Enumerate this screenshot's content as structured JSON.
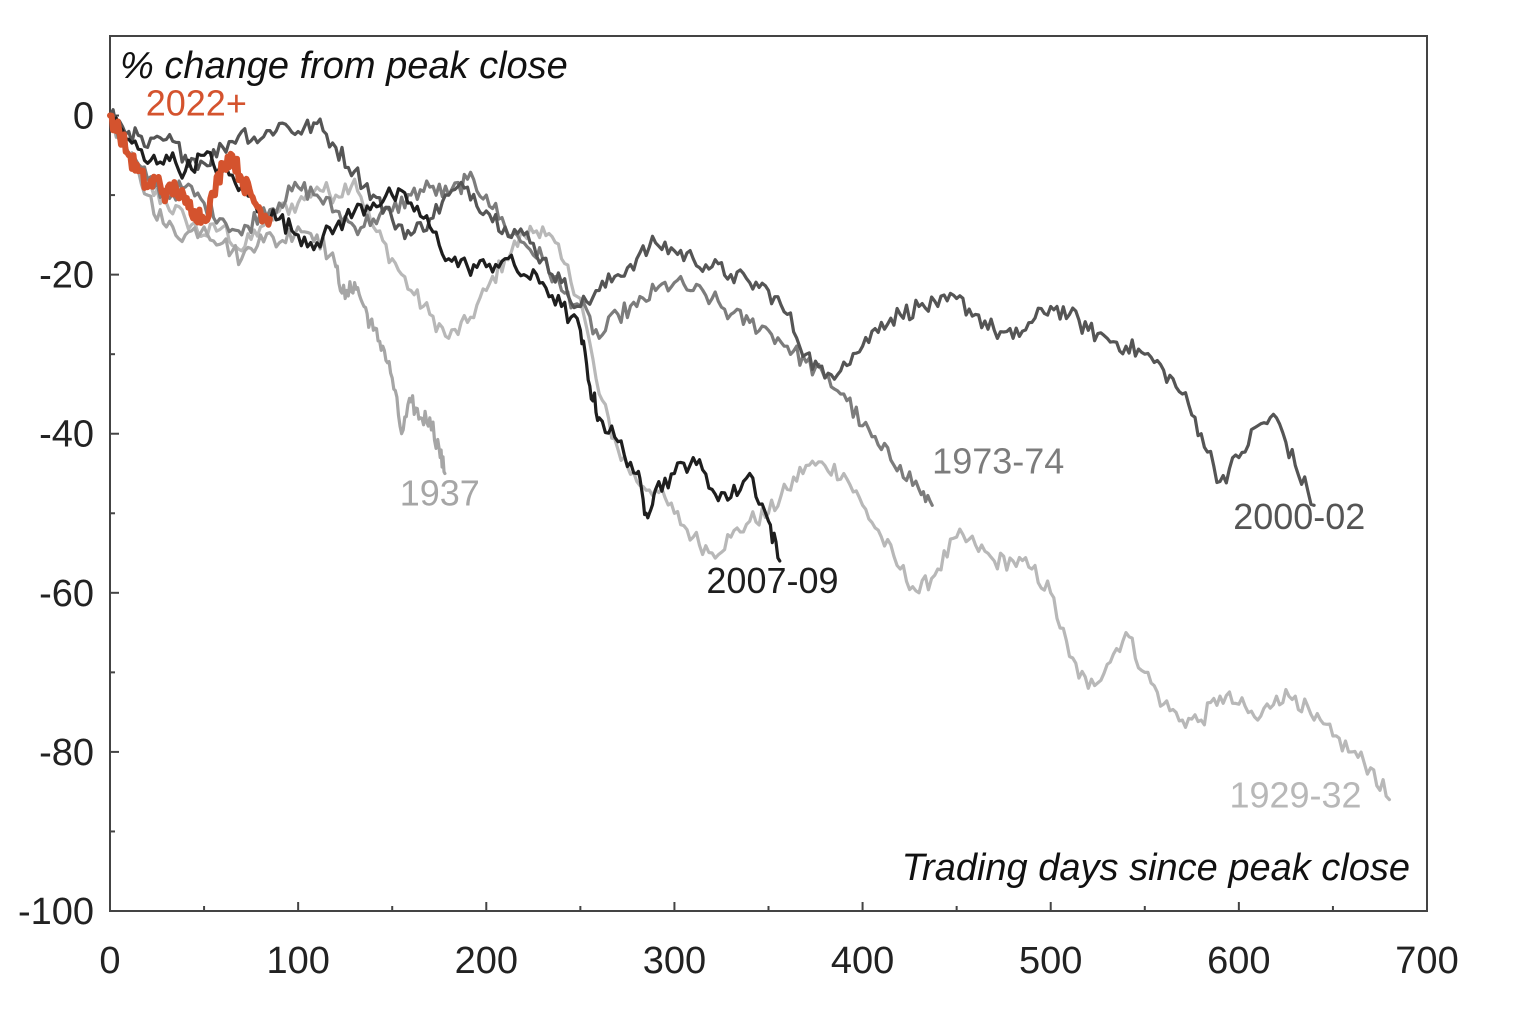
{
  "chart_data": {
    "type": "line",
    "title": "",
    "ylabel": "% change from peak close",
    "xlabel": "Trading days since peak close",
    "xlim": [
      0,
      700
    ],
    "ylim": [
      -100,
      10
    ],
    "x_ticks": [
      0,
      100,
      200,
      300,
      400,
      500,
      600,
      700
    ],
    "x_tick_labels": [
      "0",
      "100",
      "200",
      "300",
      "400",
      "500",
      "600",
      "700"
    ],
    "y_ticks": [
      0,
      -20,
      -40,
      -60,
      -80,
      -100
    ],
    "y_tick_labels": [
      "0",
      "-20",
      "-40",
      "-60",
      "-80",
      "-100"
    ],
    "grid": false,
    "legend": "none (series labelled directly on the lines)",
    "series": [
      {
        "name": "1929-32",
        "color": "#b8b8b8",
        "points": [
          [
            0,
            0
          ],
          [
            10,
            -5
          ],
          [
            20,
            -9
          ],
          [
            30,
            -11
          ],
          [
            40,
            -13
          ],
          [
            50,
            -15
          ],
          [
            60,
            -14
          ],
          [
            70,
            -17
          ],
          [
            80,
            -14
          ],
          [
            90,
            -12
          ],
          [
            100,
            -11
          ],
          [
            110,
            -9
          ],
          [
            120,
            -10
          ],
          [
            130,
            -8
          ],
          [
            140,
            -14
          ],
          [
            150,
            -18
          ],
          [
            160,
            -22
          ],
          [
            170,
            -25
          ],
          [
            180,
            -28
          ],
          [
            190,
            -26
          ],
          [
            200,
            -22
          ],
          [
            210,
            -18
          ],
          [
            220,
            -15
          ],
          [
            230,
            -14
          ],
          [
            240,
            -18
          ],
          [
            250,
            -23
          ],
          [
            260,
            -35
          ],
          [
            270,
            -42
          ],
          [
            280,
            -46
          ],
          [
            290,
            -47
          ],
          [
            300,
            -50
          ],
          [
            310,
            -53
          ],
          [
            320,
            -55
          ],
          [
            330,
            -53
          ],
          [
            340,
            -51
          ],
          [
            350,
            -50
          ],
          [
            360,
            -47
          ],
          [
            370,
            -44
          ],
          [
            380,
            -44
          ],
          [
            390,
            -45
          ],
          [
            400,
            -49
          ],
          [
            410,
            -53
          ],
          [
            420,
            -57
          ],
          [
            430,
            -60
          ],
          [
            440,
            -57
          ],
          [
            450,
            -53
          ],
          [
            460,
            -54
          ],
          [
            470,
            -56
          ],
          [
            480,
            -56
          ],
          [
            490,
            -57
          ],
          [
            500,
            -60
          ],
          [
            510,
            -68
          ],
          [
            520,
            -72
          ],
          [
            530,
            -69
          ],
          [
            540,
            -65
          ],
          [
            550,
            -70
          ],
          [
            560,
            -74
          ],
          [
            570,
            -76
          ],
          [
            580,
            -76
          ],
          [
            590,
            -73
          ],
          [
            600,
            -74
          ],
          [
            610,
            -76
          ],
          [
            620,
            -73
          ],
          [
            630,
            -73
          ],
          [
            640,
            -76
          ],
          [
            650,
            -78
          ],
          [
            660,
            -80
          ],
          [
            670,
            -82
          ],
          [
            680,
            -86
          ]
        ]
      },
      {
        "name": "1937",
        "color": "#a6a6a6",
        "points": [
          [
            0,
            0
          ],
          [
            10,
            -5
          ],
          [
            20,
            -10
          ],
          [
            30,
            -14
          ],
          [
            40,
            -15
          ],
          [
            50,
            -14
          ],
          [
            60,
            -16
          ],
          [
            70,
            -18
          ],
          [
            80,
            -15
          ],
          [
            90,
            -16
          ],
          [
            100,
            -14
          ],
          [
            110,
            -15
          ],
          [
            120,
            -19
          ],
          [
            125,
            -23
          ],
          [
            130,
            -21
          ],
          [
            135,
            -24
          ],
          [
            140,
            -27
          ],
          [
            145,
            -29
          ],
          [
            150,
            -33
          ],
          [
            155,
            -40
          ],
          [
            160,
            -36
          ],
          [
            165,
            -38
          ],
          [
            170,
            -38
          ],
          [
            175,
            -42
          ],
          [
            178,
            -45
          ]
        ]
      },
      {
        "name": "1973-74",
        "color": "#7c7c7c",
        "points": [
          [
            0,
            0
          ],
          [
            10,
            -5
          ],
          [
            20,
            -8
          ],
          [
            30,
            -10
          ],
          [
            40,
            -9
          ],
          [
            50,
            -11
          ],
          [
            60,
            -13
          ],
          [
            70,
            -15
          ],
          [
            80,
            -12
          ],
          [
            90,
            -11
          ],
          [
            100,
            -9
          ],
          [
            110,
            -10
          ],
          [
            120,
            -12
          ],
          [
            130,
            -14
          ],
          [
            140,
            -13
          ],
          [
            150,
            -12
          ],
          [
            160,
            -10
          ],
          [
            170,
            -9
          ],
          [
            180,
            -10
          ],
          [
            190,
            -8
          ],
          [
            200,
            -10
          ],
          [
            210,
            -14
          ],
          [
            220,
            -16
          ],
          [
            230,
            -18
          ],
          [
            240,
            -22
          ],
          [
            250,
            -24
          ],
          [
            260,
            -28
          ],
          [
            270,
            -25
          ],
          [
            280,
            -24
          ],
          [
            290,
            -22
          ],
          [
            300,
            -21
          ],
          [
            310,
            -22
          ],
          [
            320,
            -23
          ],
          [
            330,
            -25
          ],
          [
            340,
            -26
          ],
          [
            350,
            -27
          ],
          [
            360,
            -29
          ],
          [
            370,
            -31
          ],
          [
            380,
            -33
          ],
          [
            390,
            -35
          ],
          [
            400,
            -39
          ],
          [
            410,
            -42
          ],
          [
            420,
            -44
          ],
          [
            430,
            -47
          ],
          [
            437,
            -49
          ]
        ]
      },
      {
        "name": "2000-02",
        "color": "#555555",
        "points": [
          [
            0,
            0
          ],
          [
            10,
            -2
          ],
          [
            20,
            -4
          ],
          [
            30,
            -3
          ],
          [
            40,
            -5
          ],
          [
            50,
            -6
          ],
          [
            60,
            -4
          ],
          [
            70,
            -2
          ],
          [
            80,
            -3
          ],
          [
            90,
            -1
          ],
          [
            100,
            -2
          ],
          [
            110,
            -1
          ],
          [
            120,
            -4
          ],
          [
            130,
            -7
          ],
          [
            140,
            -10
          ],
          [
            150,
            -13
          ],
          [
            160,
            -15
          ],
          [
            170,
            -13
          ],
          [
            180,
            -10
          ],
          [
            190,
            -9
          ],
          [
            200,
            -12
          ],
          [
            210,
            -14
          ],
          [
            220,
            -15
          ],
          [
            230,
            -18
          ],
          [
            240,
            -21
          ],
          [
            250,
            -24
          ],
          [
            260,
            -22
          ],
          [
            270,
            -20
          ],
          [
            280,
            -18
          ],
          [
            290,
            -16
          ],
          [
            300,
            -17
          ],
          [
            310,
            -18
          ],
          [
            320,
            -19
          ],
          [
            330,
            -20
          ],
          [
            340,
            -21
          ],
          [
            350,
            -22
          ],
          [
            360,
            -25
          ],
          [
            370,
            -30
          ],
          [
            380,
            -33
          ],
          [
            390,
            -31
          ],
          [
            400,
            -29
          ],
          [
            410,
            -26
          ],
          [
            420,
            -25
          ],
          [
            430,
            -24
          ],
          [
            440,
            -24
          ],
          [
            450,
            -23
          ],
          [
            460,
            -25
          ],
          [
            470,
            -27
          ],
          [
            480,
            -28
          ],
          [
            490,
            -26
          ],
          [
            500,
            -24
          ],
          [
            510,
            -25
          ],
          [
            520,
            -27
          ],
          [
            530,
            -28
          ],
          [
            540,
            -29
          ],
          [
            550,
            -30
          ],
          [
            560,
            -32
          ],
          [
            570,
            -35
          ],
          [
            580,
            -40
          ],
          [
            590,
            -46
          ],
          [
            600,
            -43
          ],
          [
            610,
            -39
          ],
          [
            620,
            -38
          ],
          [
            630,
            -44
          ],
          [
            640,
            -49
          ]
        ]
      },
      {
        "name": "2007-09",
        "color": "#1e1e1e",
        "points": [
          [
            0,
            0
          ],
          [
            10,
            -3
          ],
          [
            20,
            -6
          ],
          [
            30,
            -5
          ],
          [
            40,
            -7
          ],
          [
            50,
            -5
          ],
          [
            60,
            -7
          ],
          [
            70,
            -9
          ],
          [
            80,
            -12
          ],
          [
            90,
            -13
          ],
          [
            100,
            -15
          ],
          [
            110,
            -16
          ],
          [
            120,
            -14
          ],
          [
            130,
            -12
          ],
          [
            140,
            -11
          ],
          [
            150,
            -10
          ],
          [
            160,
            -11
          ],
          [
            170,
            -14
          ],
          [
            180,
            -18
          ],
          [
            190,
            -19
          ],
          [
            200,
            -19
          ],
          [
            210,
            -18
          ],
          [
            220,
            -20
          ],
          [
            230,
            -21
          ],
          [
            240,
            -24
          ],
          [
            250,
            -27
          ],
          [
            255,
            -34
          ],
          [
            260,
            -38
          ],
          [
            270,
            -41
          ],
          [
            280,
            -45
          ],
          [
            285,
            -50
          ],
          [
            290,
            -47
          ],
          [
            300,
            -45
          ],
          [
            310,
            -43
          ],
          [
            320,
            -47
          ],
          [
            330,
            -48
          ],
          [
            340,
            -45
          ],
          [
            350,
            -51
          ],
          [
            356,
            -56
          ]
        ]
      },
      {
        "name": "2022+",
        "color": "#d4532e",
        "points": [
          [
            0,
            0
          ],
          [
            5,
            -2
          ],
          [
            10,
            -5
          ],
          [
            15,
            -7
          ],
          [
            20,
            -9
          ],
          [
            25,
            -8
          ],
          [
            30,
            -10
          ],
          [
            35,
            -9
          ],
          [
            40,
            -11
          ],
          [
            45,
            -12
          ],
          [
            50,
            -13
          ],
          [
            55,
            -10
          ],
          [
            60,
            -6
          ],
          [
            65,
            -5
          ],
          [
            70,
            -8
          ],
          [
            75,
            -10
          ],
          [
            80,
            -12
          ],
          [
            85,
            -13
          ]
        ]
      }
    ],
    "annotations": [
      {
        "text": "2022+",
        "color": "#d4532e",
        "x": 19,
        "y": 0
      },
      {
        "text": "1937",
        "color": "#a6a6a6",
        "x": 154,
        "y": -49
      },
      {
        "text": "1973-74",
        "color": "#7c7c7c",
        "x": 437,
        "y": -45
      },
      {
        "text": "2000-02",
        "color": "#555555",
        "x": 597,
        "y": -52
      },
      {
        "text": "2007-09",
        "color": "#1e1e1e",
        "x": 317,
        "y": -60
      },
      {
        "text": "1929-32",
        "color": "#b8b8b8",
        "x": 595,
        "y": -87
      }
    ]
  }
}
